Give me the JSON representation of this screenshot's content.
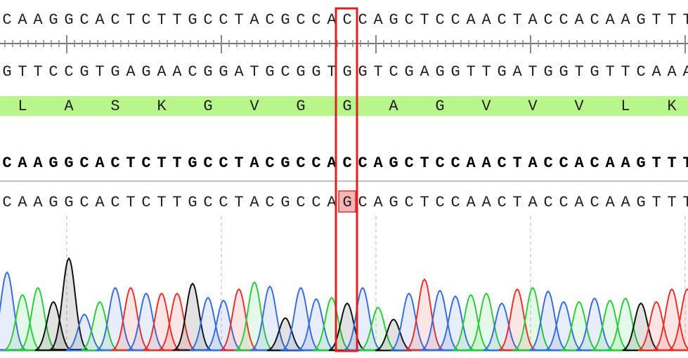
{
  "sequence_view": {
    "top_strand": "CAAGGCACTCTTGCCTACGCCACCAGCTCCAACTACCACAAGTTT",
    "bottom_strand": "GTTCCGTGAGAACGGATGCGGTGGTCGAGGTTGATGGTGTTCAAA",
    "translation": "LASKGVGGAGVVVLK",
    "consensus": "CAAGGCACTCTTGCCTACGCCACCAGCTCCAACTACCACAAGTTT",
    "read": "CAAGGCACTCTTGCCTACGCCAGCAGCTCCAACTACCACAAGTTT",
    "base_colors": {
      "A": "#2ecc40",
      "C": "#3a6fd8",
      "G": "#111111",
      "T": "#e8322b"
    },
    "peak_heights": [
      112,
      80,
      90,
      70,
      132,
      52,
      70,
      90,
      90,
      82,
      82,
      82,
      96,
      76,
      72,
      88,
      98,
      92,
      47,
      90,
      74,
      76,
      68,
      90,
      62,
      45,
      82,
      102,
      86,
      78,
      80,
      82,
      68,
      88,
      90,
      85,
      70,
      70,
      75,
      72,
      75,
      68,
      70,
      88,
      88
    ]
  }
}
